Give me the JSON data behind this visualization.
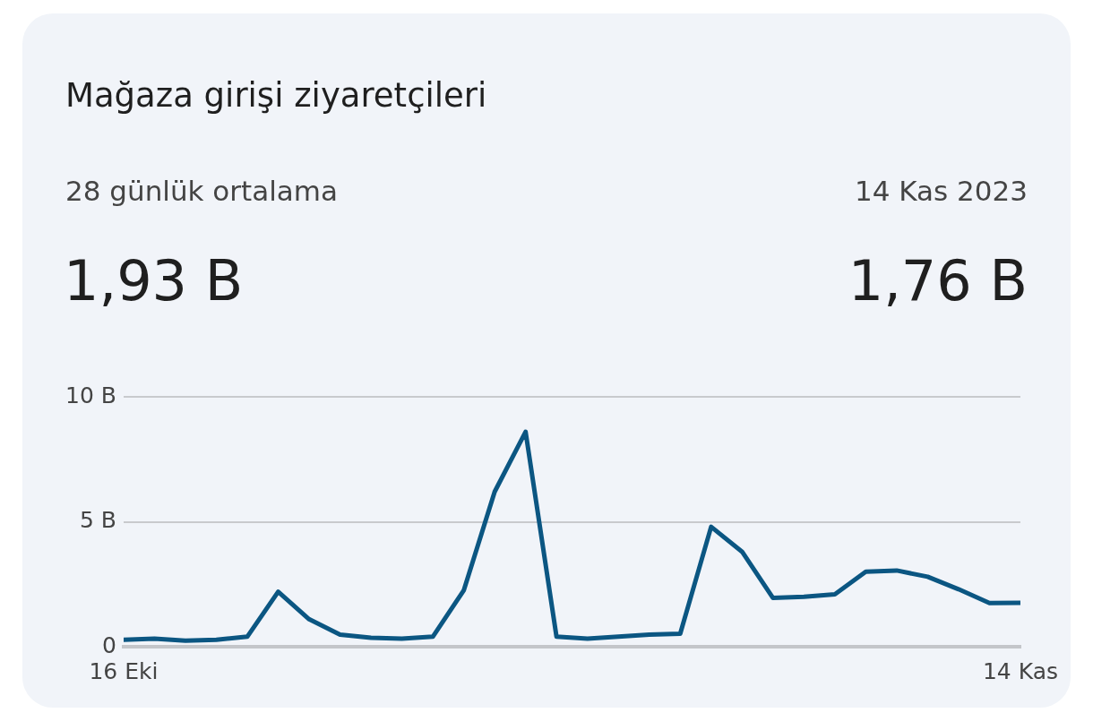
{
  "chart_data": {
    "type": "line",
    "title": "Mağaza girişi ziyaretçileri",
    "annotations": [
      "28 günlük ortalama",
      "1,93 B",
      "14 Kas 2023",
      "1,76 B"
    ],
    "x": [
      "2023-10-16",
      "2023-10-17",
      "2023-10-18",
      "2023-10-19",
      "2023-10-20",
      "2023-10-21",
      "2023-10-22",
      "2023-10-23",
      "2023-10-24",
      "2023-10-25",
      "2023-10-26",
      "2023-10-27",
      "2023-10-28",
      "2023-10-29",
      "2023-10-30",
      "2023-10-31",
      "2023-11-01",
      "2023-11-02",
      "2023-11-03",
      "2023-11-04",
      "2023-11-05",
      "2023-11-06",
      "2023-11-07",
      "2023-11-08",
      "2023-11-09",
      "2023-11-10",
      "2023-11-11",
      "2023-11-12",
      "2023-11-13",
      "2023-11-14"
    ],
    "series": [
      {
        "color": "#0b5682",
        "values": [
          0.28,
          0.32,
          0.24,
          0.28,
          0.4,
          2.2,
          1.1,
          0.48,
          0.36,
          0.32,
          0.4,
          2.25,
          6.2,
          8.6,
          0.4,
          0.32,
          0.4,
          0.48,
          0.52,
          4.8,
          3.8,
          1.95,
          2.0,
          2.1,
          3.0,
          3.05,
          2.8,
          2.3,
          1.75,
          1.76
        ]
      }
    ],
    "xlim": [
      "2023-10-16",
      "2023-11-14"
    ],
    "xticks": [
      {
        "value": "2023-10-16",
        "label": "16 Eki"
      },
      {
        "value": "2023-11-14",
        "label": "14 Kas"
      }
    ],
    "ylim": [
      0,
      10
    ],
    "yticks": [
      {
        "value": 0,
        "label": "0"
      },
      {
        "value": 5,
        "label": "5 B"
      },
      {
        "value": 10,
        "label": "10 B"
      }
    ],
    "grid": "y",
    "legend": false,
    "marker": "none",
    "line_style": "solid"
  }
}
